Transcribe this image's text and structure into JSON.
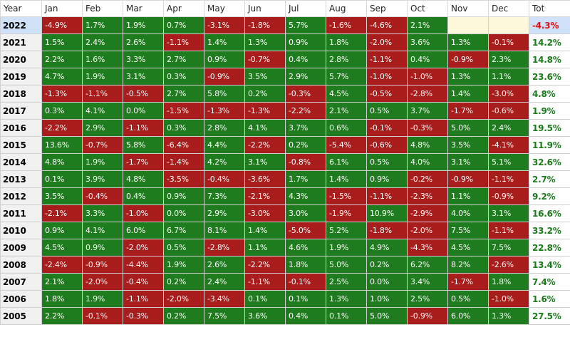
{
  "headers": [
    "Year",
    "Jan",
    "Feb",
    "Mar",
    "Apr",
    "May",
    "Jun",
    "Jul",
    "Aug",
    "Sep",
    "Oct",
    "Nov",
    "Dec",
    "Tot"
  ],
  "rows": [
    {
      "year": "2022",
      "months": [
        "-4.9%",
        "1.7%",
        "1.9%",
        "0.7%",
        "-3.1%",
        "-1.8%",
        "5.7%",
        "-1.6%",
        "-4.6%",
        "2.1%",
        "",
        ""
      ],
      "total": "-4.3%"
    },
    {
      "year": "2021",
      "months": [
        "1.5%",
        "2.4%",
        "2.6%",
        "-1.1%",
        "1.4%",
        "1.3%",
        "0.9%",
        "1.8%",
        "-2.0%",
        "3.6%",
        "1.3%",
        "-0.1%"
      ],
      "total": "14.2%"
    },
    {
      "year": "2020",
      "months": [
        "2.2%",
        "1.6%",
        "3.3%",
        "2.7%",
        "0.9%",
        "-0.7%",
        "0.4%",
        "2.8%",
        "-1.1%",
        "0.4%",
        "-0.9%",
        "2.3%"
      ],
      "total": "14.8%"
    },
    {
      "year": "2019",
      "months": [
        "4.7%",
        "1.9%",
        "3.1%",
        "0.3%",
        "-0.9%",
        "3.5%",
        "2.9%",
        "5.7%",
        "-1.0%",
        "-1.0%",
        "1.3%",
        "1.1%"
      ],
      "total": "23.6%"
    },
    {
      "year": "2018",
      "months": [
        "-1.3%",
        "-1.1%",
        "-0.5%",
        "2.7%",
        "5.8%",
        "0.2%",
        "-0.3%",
        "4.5%",
        "-0.5%",
        "-2.8%",
        "1.4%",
        "-3.0%"
      ],
      "total": "4.8%"
    },
    {
      "year": "2017",
      "months": [
        "0.3%",
        "4.1%",
        "0.0%",
        "-1.5%",
        "-1.3%",
        "-1.3%",
        "-2.2%",
        "2.1%",
        "0.5%",
        "3.7%",
        "-1.7%",
        "-0.6%"
      ],
      "total": "1.9%"
    },
    {
      "year": "2016",
      "months": [
        "-2.2%",
        "2.9%",
        "-1.1%",
        "0.3%",
        "2.8%",
        "4.1%",
        "3.7%",
        "0.6%",
        "-0.1%",
        "-0.3%",
        "5.0%",
        "2.4%"
      ],
      "total": "19.5%"
    },
    {
      "year": "2015",
      "months": [
        "13.6%",
        "-0.7%",
        "5.8%",
        "-6.4%",
        "4.4%",
        "-2.2%",
        "0.2%",
        "-5.4%",
        "-0.6%",
        "4.8%",
        "3.5%",
        "-4.1%"
      ],
      "total": "11.9%"
    },
    {
      "year": "2014",
      "months": [
        "4.8%",
        "1.9%",
        "-1.7%",
        "-1.4%",
        "4.2%",
        "3.1%",
        "-0.8%",
        "6.1%",
        "0.5%",
        "4.0%",
        "3.1%",
        "5.1%"
      ],
      "total": "32.6%"
    },
    {
      "year": "2013",
      "months": [
        "0.1%",
        "3.9%",
        "4.8%",
        "-3.5%",
        "-0.4%",
        "-3.6%",
        "1.7%",
        "1.4%",
        "0.9%",
        "-0.2%",
        "-0.9%",
        "-1.1%"
      ],
      "total": "2.7%"
    },
    {
      "year": "2012",
      "months": [
        "3.5%",
        "-0.4%",
        "0.4%",
        "0.9%",
        "7.3%",
        "-2.1%",
        "4.3%",
        "-1.5%",
        "-1.1%",
        "-2.3%",
        "1.1%",
        "-0.9%"
      ],
      "total": "9.2%"
    },
    {
      "year": "2011",
      "months": [
        "-2.1%",
        "3.3%",
        "-1.0%",
        "0.0%",
        "2.9%",
        "-3.0%",
        "3.0%",
        "-1.9%",
        "10.9%",
        "-2.9%",
        "4.0%",
        "3.1%"
      ],
      "total": "16.6%"
    },
    {
      "year": "2010",
      "months": [
        "0.9%",
        "4.1%",
        "6.0%",
        "6.7%",
        "8.1%",
        "1.4%",
        "-5.0%",
        "5.2%",
        "-1.8%",
        "-2.0%",
        "7.5%",
        "-1.1%"
      ],
      "total": "33.2%"
    },
    {
      "year": "2009",
      "months": [
        "4.5%",
        "0.9%",
        "-2.0%",
        "0.5%",
        "-2.8%",
        "1.1%",
        "4.6%",
        "1.9%",
        "4.9%",
        "-4.3%",
        "4.5%",
        "7.5%"
      ],
      "total": "22.8%"
    },
    {
      "year": "2008",
      "months": [
        "-2.4%",
        "-0.9%",
        "-4.4%",
        "1.9%",
        "2.6%",
        "-2.2%",
        "1.8%",
        "5.0%",
        "0.2%",
        "6.2%",
        "8.2%",
        "-2.6%"
      ],
      "total": "13.4%"
    },
    {
      "year": "2007",
      "months": [
        "2.1%",
        "-2.0%",
        "-0.4%",
        "0.2%",
        "2.4%",
        "-1.1%",
        "-0.1%",
        "2.5%",
        "0.0%",
        "3.4%",
        "-1.7%",
        "1.8%"
      ],
      "total": "7.4%"
    },
    {
      "year": "2006",
      "months": [
        "1.8%",
        "1.9%",
        "-1.1%",
        "-2.0%",
        "-3.4%",
        "0.1%",
        "0.1%",
        "1.3%",
        "1.0%",
        "2.5%",
        "0.5%",
        "-1.0%"
      ],
      "total": "1.6%"
    },
    {
      "year": "2005",
      "months": [
        "2.2%",
        "-0.1%",
        "-0.3%",
        "0.2%",
        "7.5%",
        "3.6%",
        "0.4%",
        "0.1%",
        "5.0%",
        "-0.9%",
        "6.0%",
        "1.3%"
      ],
      "total": "27.5%"
    }
  ],
  "selected_year": "2022",
  "colors": {
    "positive_cell": "#1e7c1e",
    "negative_cell": "#a81c1c",
    "empty_cell": "#fdf8dc",
    "total_positive_text": "#1a7a1a",
    "total_negative_text": "#e01010",
    "selected_row": "#cfe2f7"
  }
}
